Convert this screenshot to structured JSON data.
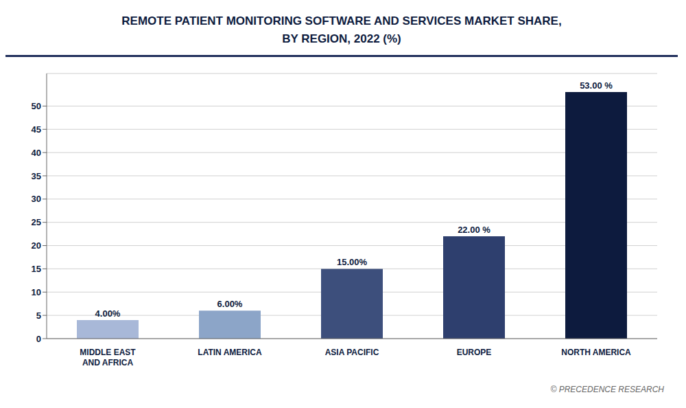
{
  "chart_data": {
    "type": "bar",
    "title": "REMOTE PATIENT MONITORING SOFTWARE AND SERVICES MARKET SHARE,\nBY REGION, 2022 (%)",
    "categories": [
      "MIDDLE EAST\nAND AFRICA",
      "LATIN AMERICA",
      "ASIA PACIFIC",
      "EUROPE",
      "NORTH AMERICA"
    ],
    "values": [
      4.0,
      6.0,
      15.0,
      22.0,
      53.0
    ],
    "value_labels": [
      "4.00%",
      "6.00%",
      "15.00%",
      "22.00 %",
      "53.00 %"
    ],
    "data_labels": true,
    "colors": [
      "#a8b8d8",
      "#8ca5c8",
      "#3d4f7c",
      "#2e3f6e",
      "#0d1b3e"
    ],
    "ylim": [
      0,
      57
    ],
    "yticks": [
      0,
      5,
      10,
      15,
      20,
      25,
      30,
      35,
      40,
      45,
      50
    ],
    "grid": true,
    "annotations": [
      "© PRECEDENCE RESEARCH"
    ]
  }
}
